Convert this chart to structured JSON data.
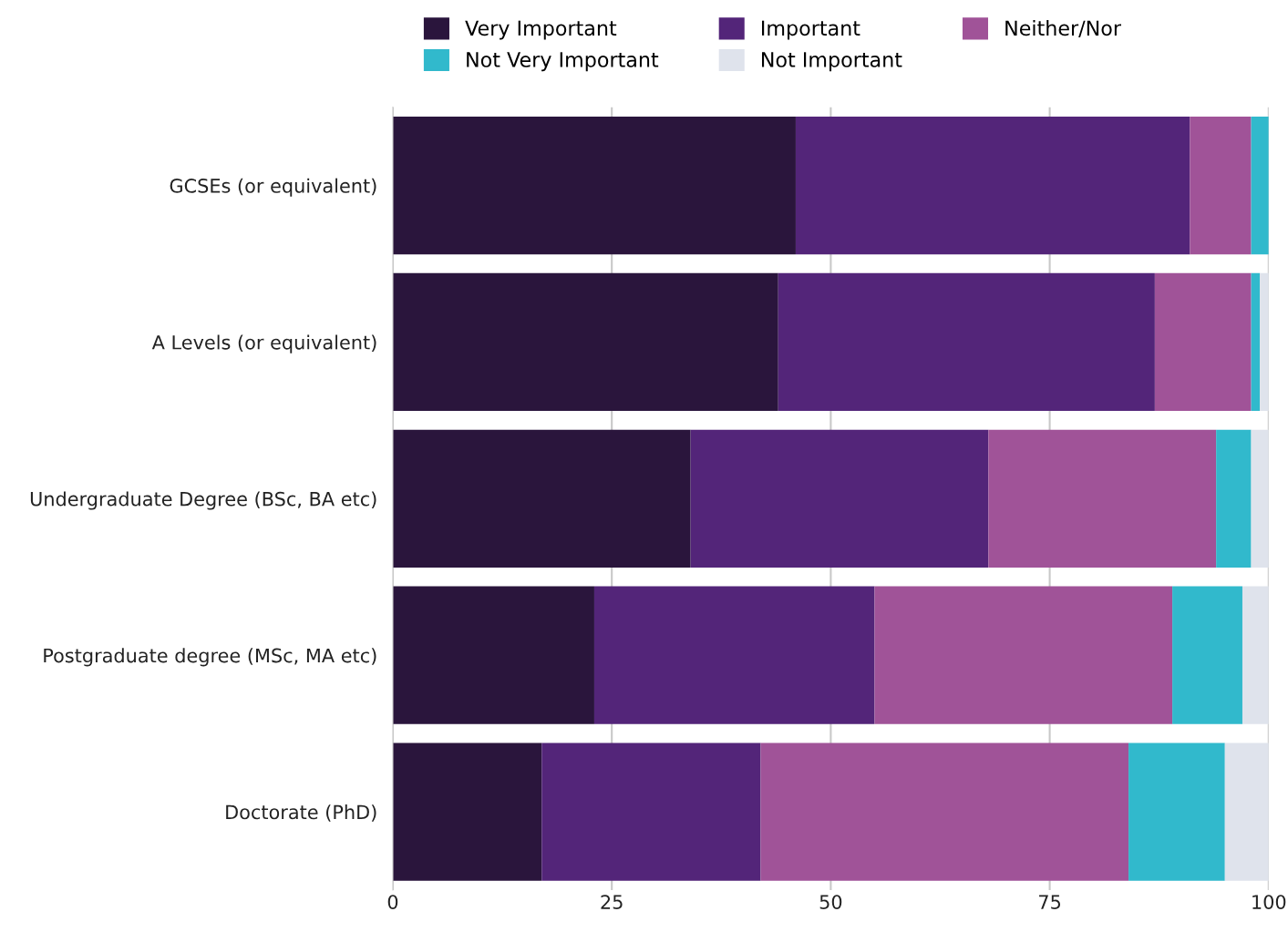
{
  "chart_data": {
    "type": "bar",
    "orientation": "horizontal",
    "stacked": true,
    "categories": [
      "GCSEs (or equivalent)",
      "A Levels (or equivalent)",
      "Undergraduate Degree (BSc, BA etc)",
      "Postgraduate degree (MSc, MA etc)",
      "Doctorate (PhD)"
    ],
    "series": [
      {
        "name": "Very Important",
        "color": "#2a153c",
        "values": [
          46,
          44,
          34,
          23,
          17
        ]
      },
      {
        "name": "Important",
        "color": "#532579",
        "values": [
          45,
          43,
          34,
          32,
          25
        ]
      },
      {
        "name": "Neither/Nor",
        "color": "#a05398",
        "values": [
          7,
          11,
          26,
          34,
          42
        ]
      },
      {
        "name": "Not Very Important",
        "color": "#31b9cc",
        "values": [
          2,
          1,
          4,
          8,
          11
        ]
      },
      {
        "name": "Not Important",
        "color": "#dfe3ec",
        "values": [
          0,
          1,
          2,
          3,
          5
        ]
      }
    ],
    "xlim": [
      0,
      100
    ],
    "xticks": [
      0,
      25,
      50,
      75,
      100
    ],
    "grid": "x",
    "legend": "top"
  }
}
